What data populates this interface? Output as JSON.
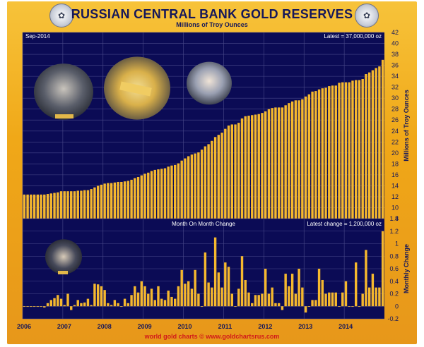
{
  "header": {
    "title": "RUSSIAN CENTRAL BANK GOLD RESERVES",
    "subtitle": "Millions of Troy Ounces",
    "seal_left_icon": "bank-of-russia-seal-icon",
    "seal_right_icon": "bank-of-russia-seal-icon"
  },
  "footer": {
    "credit": "world gold charts © www.goldchartsrus.com"
  },
  "colors": {
    "bar": "#f5b82e",
    "plot_bg": "#0b0b55",
    "grid": "#4a4a8a",
    "frame": "#f0a818",
    "text": "#15175a"
  },
  "chart_data": [
    {
      "type": "bar",
      "title": "RUSSIAN CENTRAL BANK GOLD RESERVES",
      "subtitle": "Millions of Troy Ounces",
      "ylabel": "Millions of Troy Ounces",
      "ylim": [
        8,
        42
      ],
      "yticks": [
        8,
        10,
        12,
        14,
        16,
        18,
        20,
        22,
        24,
        26,
        28,
        30,
        32,
        34,
        36,
        38,
        40,
        42
      ],
      "x_start": "2006-01",
      "x_end": "2014-09",
      "xticks": [
        "2006",
        "2007",
        "2008",
        "2009",
        "2010",
        "2011",
        "2012",
        "2013",
        "2014"
      ],
      "grid": true,
      "annotation_left": "Sep-2014",
      "annotation_right": "Latest = 37,000,000 oz",
      "values": [
        12.4,
        12.4,
        12.4,
        12.4,
        12.4,
        12.4,
        12.4,
        12.5,
        12.6,
        12.7,
        12.8,
        13.0,
        13.0,
        13.0,
        13.0,
        13.0,
        13.1,
        13.1,
        13.2,
        13.2,
        13.4,
        13.7,
        14.0,
        14.2,
        14.4,
        14.5,
        14.5,
        14.6,
        14.7,
        14.7,
        14.8,
        14.9,
        15.1,
        15.4,
        15.6,
        15.9,
        16.2,
        16.4,
        16.7,
        16.9,
        17.0,
        17.1,
        17.2,
        17.5,
        17.7,
        17.8,
        18.1,
        18.6,
        19.0,
        19.4,
        19.7,
        19.9,
        20.1,
        20.6,
        21.2,
        21.6,
        22.2,
        22.9,
        23.3,
        23.7,
        24.4,
        25.0,
        25.2,
        25.2,
        25.5,
        26.3,
        26.7,
        26.8,
        26.9,
        27.0,
        27.1,
        27.3,
        27.6,
        28.0,
        28.2,
        28.3,
        28.3,
        28.3,
        28.7,
        29.1,
        29.4,
        29.6,
        29.6,
        29.8,
        30.3,
        30.7,
        31.2,
        31.3,
        31.6,
        31.8,
        31.9,
        32.2,
        32.3,
        32.3,
        32.8,
        32.9,
        32.9,
        32.9,
        33.2,
        33.3,
        33.3,
        33.5,
        34.4,
        34.7,
        35.1,
        35.5,
        35.8,
        37.0
      ]
    },
    {
      "type": "bar",
      "title": "Month On Month Change",
      "ylabel": "Monthly Change",
      "ylim": [
        -0.2,
        1.4
      ],
      "yticks": [
        -0.2,
        0,
        0.2,
        0.4,
        0.6,
        0.8,
        1.0,
        1.2,
        1.4
      ],
      "x_start": "2006-01",
      "x_end": "2014-09",
      "xticks": [
        "2006",
        "2007",
        "2008",
        "2009",
        "2010",
        "2011",
        "2012",
        "2013",
        "2014"
      ],
      "grid": true,
      "annotation_right": "Latest change = 1,200,000 oz",
      "values": [
        0.0,
        0.0,
        0.0,
        0.0,
        0.0,
        0.0,
        -0.02,
        0.05,
        0.1,
        0.13,
        0.18,
        0.12,
        0.02,
        0.2,
        -0.06,
        0.02,
        0.1,
        0.05,
        0.06,
        0.12,
        0.02,
        0.36,
        0.35,
        0.32,
        0.26,
        0.05,
        0.02,
        0.1,
        0.05,
        0.0,
        0.12,
        0.05,
        0.18,
        0.32,
        0.22,
        0.4,
        0.32,
        0.2,
        0.28,
        0.1,
        0.32,
        0.12,
        0.1,
        0.25,
        0.15,
        0.12,
        0.32,
        0.58,
        0.36,
        0.4,
        0.28,
        0.58,
        0.2,
        0.0,
        0.86,
        0.38,
        0.3,
        1.1,
        0.54,
        0.3,
        0.7,
        0.63,
        0.2,
        0.0,
        0.28,
        0.8,
        0.42,
        0.22,
        0.05,
        0.18,
        0.18,
        0.2,
        0.6,
        0.2,
        0.3,
        0.05,
        0.05,
        -0.06,
        0.52,
        0.32,
        0.52,
        0.2,
        0.6,
        0.3,
        -0.1,
        0.0,
        0.1,
        0.1,
        0.6,
        0.42,
        0.2,
        0.22,
        0.22,
        0.22,
        0.0,
        0.22,
        0.4,
        0.0,
        0.0,
        0.7,
        0.0,
        0.2,
        0.9,
        0.3,
        0.52,
        0.3,
        0.3,
        1.2
      ]
    }
  ],
  "photos": [
    {
      "name": "photo-officials-gold-bars"
    },
    {
      "name": "photo-gold-bar-closeup"
    },
    {
      "name": "photo-man-with-gold-bar"
    },
    {
      "name": "photo-man-inspecting-gold"
    }
  ]
}
